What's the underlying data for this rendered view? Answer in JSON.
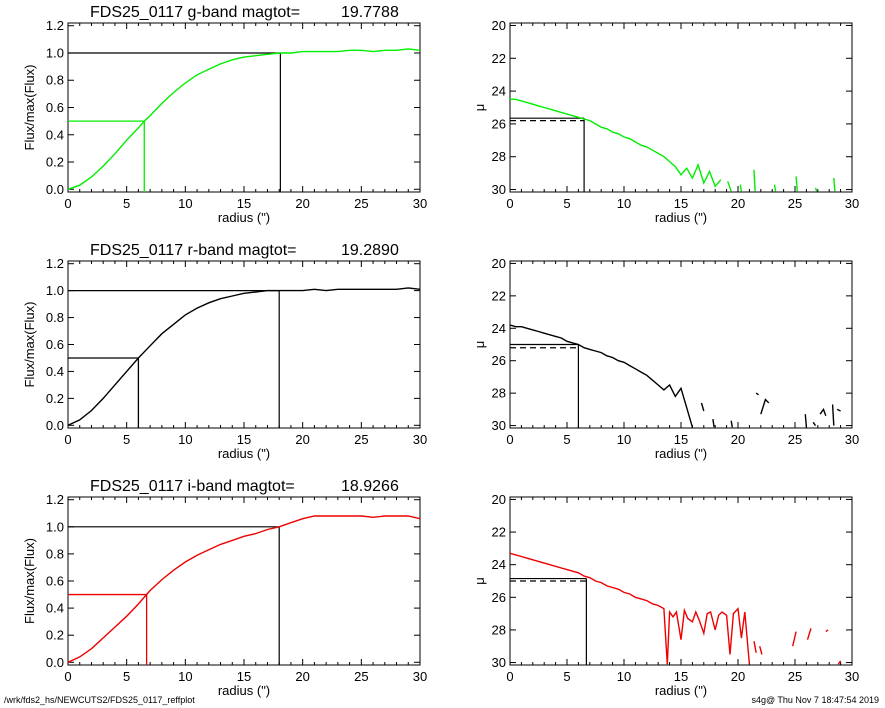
{
  "footer": {
    "left": "/wrk/fds2_hs/NEWCUTS2/FDS25_0117_reffplot",
    "right": "s4g@  Thu Nov  7 18:47:54 2019"
  },
  "chart_data": [
    {
      "type": "line",
      "panel": "growth-curve-g",
      "title": "FDS25_0117 g-band  magtot=",
      "title_value": "19.7788",
      "xlabel": "radius (\")",
      "ylabel": "Flux/max(Flux)",
      "xlim": [
        0,
        30
      ],
      "ylim": [
        -0.02,
        1.22
      ],
      "xticks": [
        "0",
        "5",
        "10",
        "15",
        "20",
        "25",
        "30"
      ],
      "yticks": [
        "0.0",
        "0.2",
        "0.4",
        "0.6",
        "0.8",
        "1.0",
        "1.2"
      ],
      "color": "#00ee00",
      "x": [
        0,
        1,
        2,
        3,
        4,
        5,
        6,
        6.5,
        7,
        8,
        9,
        10,
        11,
        12,
        13,
        14,
        15,
        16,
        17,
        18,
        19,
        20,
        21,
        22,
        23,
        24,
        25,
        26,
        27,
        28,
        29,
        30
      ],
      "y": [
        0,
        0.03,
        0.09,
        0.17,
        0.26,
        0.36,
        0.45,
        0.5,
        0.54,
        0.63,
        0.71,
        0.78,
        0.84,
        0.88,
        0.92,
        0.95,
        0.97,
        0.98,
        0.99,
        1.0,
        1.0,
        1.01,
        1.01,
        1.01,
        1.01,
        1.02,
        1.02,
        1.01,
        1.02,
        1.02,
        1.03,
        1.02
      ],
      "half_radius": 6.5,
      "half_level": 0.5,
      "total_radius": 18.1,
      "total_level": 1.0
    },
    {
      "type": "line",
      "panel": "surface-brightness-g",
      "xlabel": "radius (\")",
      "ylabel": "μ",
      "xlim": [
        0,
        30
      ],
      "ylim": [
        30.15,
        19.85
      ],
      "xticks": [
        "0",
        "5",
        "10",
        "15",
        "20",
        "25",
        "30"
      ],
      "yticks": [
        "20",
        "22",
        "24",
        "26",
        "28",
        "30"
      ],
      "color": "#00ee00",
      "x": [
        0,
        0.5,
        1,
        1.5,
        2,
        2.5,
        3,
        3.5,
        4,
        4.5,
        5,
        5.5,
        6,
        6.5,
        7,
        7.5,
        8,
        8.5,
        9,
        9.5,
        10,
        10.5,
        11,
        11.5,
        12,
        12.5,
        13,
        13.5,
        14,
        14.5,
        15,
        15.5,
        16,
        16.5,
        17,
        17.5,
        18,
        18.5
      ],
      "y": [
        24.5,
        24.5,
        24.6,
        24.7,
        24.8,
        24.9,
        25.0,
        25.1,
        25.2,
        25.3,
        25.4,
        25.5,
        25.6,
        25.7,
        25.8,
        26.0,
        26.2,
        26.3,
        26.5,
        26.6,
        26.8,
        26.9,
        27.1,
        27.3,
        27.4,
        27.6,
        27.8,
        28.0,
        28.3,
        28.6,
        29.1,
        28.7,
        29.3,
        28.5,
        29.6,
        28.9,
        29.8,
        29.4
      ],
      "fragments": [
        {
          "x": [
            19.1,
            19.4
          ],
          "y": [
            29.5,
            30.1
          ]
        },
        {
          "x": [
            20.2,
            20.3
          ],
          "y": [
            29.7,
            30.1
          ]
        },
        {
          "x": [
            21.4,
            21.5
          ],
          "y": [
            28.8,
            30.1
          ]
        },
        {
          "x": [
            23.2,
            23.3
          ],
          "y": [
            29.7,
            30.1
          ]
        },
        {
          "x": [
            25.1,
            25.2
          ],
          "y": [
            29.2,
            30.1
          ]
        },
        {
          "x": [
            26.8,
            26.9
          ],
          "y": [
            29.9,
            30.1
          ]
        },
        {
          "x": [
            28.4,
            28.5
          ],
          "y": [
            29.3,
            30.1
          ]
        }
      ],
      "reference_radius": 6.5,
      "reference_mu_solid": 25.65,
      "reference_mu_dashed": 25.8
    },
    {
      "type": "line",
      "panel": "growth-curve-r",
      "title": "FDS25_0117 r-band  magtot=",
      "title_value": "19.2890",
      "xlabel": "radius (\")",
      "ylabel": "Flux/max(Flux)",
      "xlim": [
        0,
        30
      ],
      "ylim": [
        -0.02,
        1.22
      ],
      "xticks": [
        "0",
        "5",
        "10",
        "15",
        "20",
        "25",
        "30"
      ],
      "yticks": [
        "0.0",
        "0.2",
        "0.4",
        "0.6",
        "0.8",
        "1.0",
        "1.2"
      ],
      "color": "#000000",
      "x": [
        0,
        1,
        2,
        3,
        4,
        5,
        6,
        7,
        8,
        9,
        10,
        11,
        12,
        13,
        14,
        15,
        16,
        17,
        18,
        19,
        20,
        21,
        22,
        23,
        24,
        25,
        26,
        27,
        28,
        29,
        30
      ],
      "y": [
        0,
        0.04,
        0.11,
        0.2,
        0.3,
        0.4,
        0.5,
        0.59,
        0.68,
        0.75,
        0.82,
        0.87,
        0.91,
        0.94,
        0.96,
        0.98,
        0.99,
        1.0,
        1.0,
        1.0,
        1.0,
        1.01,
        1.0,
        1.01,
        1.01,
        1.01,
        1.01,
        1.01,
        1.01,
        1.02,
        1.01
      ],
      "half_radius": 6.0,
      "half_level": 0.5,
      "total_radius": 18.0,
      "total_level": 1.0
    },
    {
      "type": "line",
      "panel": "surface-brightness-r",
      "xlabel": "radius (\")",
      "ylabel": "μ",
      "xlim": [
        0,
        30
      ],
      "ylim": [
        30.15,
        19.85
      ],
      "xticks": [
        "0",
        "5",
        "10",
        "15",
        "20",
        "25",
        "30"
      ],
      "yticks": [
        "20",
        "22",
        "24",
        "26",
        "28",
        "30"
      ],
      "color": "#000000",
      "x": [
        0,
        0.5,
        1,
        1.5,
        2,
        2.5,
        3,
        3.5,
        4,
        4.5,
        5,
        5.5,
        6,
        6.5,
        7,
        7.5,
        8,
        8.5,
        9,
        9.5,
        10,
        10.5,
        11,
        11.5,
        12,
        12.5,
        13,
        13.5,
        14,
        14.5,
        15,
        15.5,
        16
      ],
      "y": [
        23.8,
        23.9,
        23.9,
        24.0,
        24.1,
        24.2,
        24.3,
        24.4,
        24.5,
        24.6,
        24.8,
        24.9,
        25.0,
        25.2,
        25.3,
        25.4,
        25.5,
        25.7,
        25.8,
        26.0,
        26.1,
        26.3,
        26.5,
        26.7,
        26.9,
        27.2,
        27.5,
        27.8,
        27.5,
        28.2,
        27.7,
        28.9,
        30.1
      ],
      "fragments": [
        {
          "x": [
            16.8,
            17.0
          ],
          "y": [
            28.6,
            29.1
          ]
        },
        {
          "x": [
            17.8,
            17.9
          ],
          "y": [
            29.6,
            30.1
          ]
        },
        {
          "x": [
            19.4,
            19.5
          ],
          "y": [
            29.7,
            30.1
          ]
        },
        {
          "x": [
            21.6,
            21.8
          ],
          "y": [
            28.0,
            28.1
          ]
        },
        {
          "x": [
            22.0,
            22.4,
            22.7
          ],
          "y": [
            29.3,
            28.4,
            28.6
          ]
        },
        {
          "x": [
            25.9,
            26.0
          ],
          "y": [
            29.3,
            30.1
          ]
        },
        {
          "x": [
            26.6,
            26.8
          ],
          "y": [
            29.8,
            30.0
          ]
        },
        {
          "x": [
            27.2,
            27.5,
            27.7
          ],
          "y": [
            29.3,
            29.0,
            29.4
          ]
        },
        {
          "x": [
            28.3,
            28.4
          ],
          "y": [
            28.7,
            30.0
          ]
        },
        {
          "x": [
            28.7,
            29.0
          ],
          "y": [
            29.0,
            29.1
          ]
        }
      ],
      "reference_radius": 6.0,
      "reference_mu_solid": 25.0,
      "reference_mu_dashed": 25.2
    },
    {
      "type": "line",
      "panel": "growth-curve-i",
      "title": "FDS25_0117 i-band  magtot=",
      "title_value": "18.9266",
      "xlabel": "radius (\")",
      "ylabel": "Flux/max(Flux)",
      "xlim": [
        0,
        30
      ],
      "ylim": [
        -0.02,
        1.22
      ],
      "xticks": [
        "0",
        "5",
        "10",
        "15",
        "20",
        "25",
        "30"
      ],
      "yticks": [
        "0.0",
        "0.2",
        "0.4",
        "0.6",
        "0.8",
        "1.0",
        "1.2"
      ],
      "color": "#ee0000",
      "x": [
        0,
        1,
        2,
        3,
        4,
        5,
        6,
        6.7,
        7,
        8,
        9,
        10,
        11,
        12,
        13,
        14,
        15,
        16,
        17,
        18,
        19,
        20,
        21,
        22,
        23,
        24,
        25,
        26,
        27,
        28,
        29,
        30
      ],
      "y": [
        0,
        0.04,
        0.1,
        0.18,
        0.26,
        0.34,
        0.43,
        0.5,
        0.53,
        0.61,
        0.68,
        0.74,
        0.79,
        0.83,
        0.87,
        0.9,
        0.93,
        0.95,
        0.98,
        1.0,
        1.03,
        1.06,
        1.08,
        1.08,
        1.08,
        1.08,
        1.08,
        1.07,
        1.08,
        1.08,
        1.08,
        1.06
      ],
      "half_radius": 6.7,
      "half_level": 0.5,
      "total_radius": 18.0,
      "total_level": 1.0
    },
    {
      "type": "line",
      "panel": "surface-brightness-i",
      "xlabel": "radius (\")",
      "ylabel": "μ",
      "xlim": [
        0,
        30
      ],
      "ylim": [
        30.15,
        19.85
      ],
      "xticks": [
        "0",
        "5",
        "10",
        "15",
        "20",
        "25",
        "30"
      ],
      "yticks": [
        "20",
        "22",
        "24",
        "26",
        "28",
        "30"
      ],
      "color": "#ee0000",
      "x": [
        0,
        0.5,
        1,
        1.5,
        2,
        2.5,
        3,
        3.5,
        4,
        4.5,
        5,
        5.5,
        6,
        6.5,
        7,
        7.5,
        8,
        8.5,
        9,
        9.5,
        10,
        10.5,
        11,
        11.5,
        12,
        12.5,
        13,
        13.5,
        13.8,
        14,
        14.3,
        14.6,
        15,
        15.3,
        15.6,
        16,
        16.3,
        16.6,
        17,
        17.3,
        17.6,
        18,
        18.3,
        18.6,
        19,
        19.3,
        19.6,
        20,
        20.3,
        20.6,
        21
      ],
      "y": [
        23.3,
        23.4,
        23.5,
        23.6,
        23.7,
        23.8,
        23.9,
        24.0,
        24.1,
        24.2,
        24.3,
        24.4,
        24.5,
        24.7,
        24.8,
        25.0,
        25.1,
        25.3,
        25.4,
        25.5,
        25.7,
        25.8,
        26.0,
        26.1,
        26.2,
        26.4,
        26.5,
        26.7,
        30.1,
        26.9,
        27.2,
        26.9,
        28.6,
        26.8,
        27.3,
        27.5,
        26.9,
        27.4,
        28.2,
        27.0,
        26.9,
        28.0,
        27.1,
        26.9,
        27.1,
        29.5,
        27.0,
        26.7,
        28.5,
        26.9,
        30.1
      ],
      "fragments": [
        {
          "x": [
            21.4,
            21.6
          ],
          "y": [
            28.7,
            29.4
          ]
        },
        {
          "x": [
            21.9,
            22.1
          ],
          "y": [
            29.0,
            29.5
          ]
        },
        {
          "x": [
            24.8,
            25.1
          ],
          "y": [
            29.0,
            28.1
          ]
        },
        {
          "x": [
            26.1,
            26.4
          ],
          "y": [
            28.6,
            27.9
          ]
        },
        {
          "x": [
            27.7,
            27.9
          ],
          "y": [
            28.1,
            28.0
          ]
        },
        {
          "x": [
            28.8,
            29.0
          ],
          "y": [
            30.1,
            29.9
          ]
        }
      ],
      "reference_radius": 6.7,
      "reference_mu_solid": 24.85,
      "reference_mu_dashed": 25.0
    }
  ]
}
